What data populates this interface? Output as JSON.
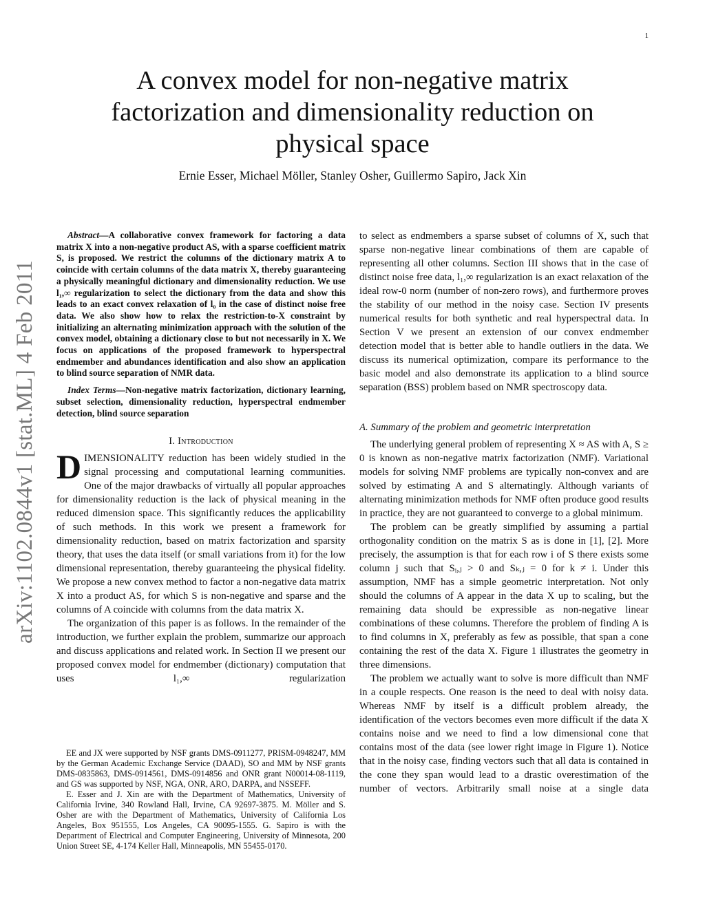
{
  "page_number": "1",
  "title": "A convex model for non-negative matrix factorization and dimensionality reduction on physical space",
  "authors": "Ernie Esser, Michael Möller, Stanley Osher, Guillermo Sapiro, Jack Xin",
  "arxiv_id": "arXiv:1102.0844v1  [stat.ML]  4 Feb 2011",
  "abstract": {
    "label": "Abstract",
    "text": "—A collaborative convex framework for factoring a data matrix X into a non-negative product AS, with a sparse coefficient matrix S, is proposed. We restrict the columns of the dictionary matrix A to coincide with certain columns of the data matrix X, thereby guaranteeing a physically meaningful dictionary and dimensionality reduction. We use l₁,∞ regularization to select the dictionary from the data and show this leads to an exact convex relaxation of l₀ in the case of distinct noise free data. We also show how to relax the restriction-to-X constraint by initializing an alternating minimization approach with the solution of the convex model, obtaining a dictionary close to but not necessarily in X. We focus on applications of the proposed framework to hyperspectral endmember and abundances identification and also show an application to blind source separation of NMR data."
  },
  "index_terms": {
    "label": "Index Terms",
    "text": "—Non-negative matrix factorization, dictionary learning, subset selection, dimensionality reduction, hyperspectral endmember detection, blind source separation"
  },
  "section1": {
    "heading": "I. Introduction",
    "dropcap": "D",
    "p1": "IMENSIONALITY reduction has been widely studied in the signal processing and computational learning communities. One of the major drawbacks of virtually all popular approaches for dimensionality reduction is the lack of physical meaning in the reduced dimension space. This significantly reduces the applicability of such methods. In this work we present a framework for dimensionality reduction, based on matrix factorization and sparsity theory, that uses the data itself (or small variations from it) for the low dimensional representation, thereby guaranteeing the physical fidelity. We propose a new convex method to factor a non-negative data matrix X into a product AS, for which S is non-negative and sparse and the columns of A coincide with columns from the data matrix X.",
    "p2": "The organization of this paper is as follows. In the remainder of the introduction, we further explain the problem, summarize our approach and discuss applications and related work. In Section II we present our proposed convex model for endmember (dictionary) computation that uses l₁,∞ regularization",
    "p2_cont": "to select as endmembers a sparse subset of columns of X, such that sparse non-negative linear combinations of them are capable of representing all other columns. Section III shows that in the case of distinct noise free data, l₁,∞ regularization is an exact relaxation of the ideal row-0 norm (number of non-zero rows), and furthermore proves the stability of our method in the noisy case. Section IV presents numerical results for both synthetic and real hyperspectral data. In Section V we present an extension of our convex endmember detection model that is better able to handle outliers in the data. We discuss its numerical optimization, compare its performance to the basic model and also demonstrate its application to a blind source separation (BSS) problem based on NMR spectroscopy data."
  },
  "subsectionA": {
    "heading": "A. Summary of the problem and geometric interpretation",
    "p1": "The underlying general problem of representing X ≈ AS with A, S ≥ 0 is known as non-negative matrix factorization (NMF). Variational models for solving NMF problems are typically non-convex and are solved by estimating A and S alternatingly. Although variants of alternating minimization methods for NMF often produce good results in practice, they are not guaranteed to converge to a global minimum.",
    "p2": "The problem can be greatly simplified by assuming a partial orthogonality condition on the matrix S as is done in [1], [2]. More precisely, the assumption is that for each row i of S there exists some column j such that Sᵢ,ⱼ > 0 and Sₖ,ⱼ = 0 for k ≠ i. Under this assumption, NMF has a simple geometric interpretation. Not only should the columns of A appear in the data X up to scaling, but the remaining data should be expressible as non-negative linear combinations of these columns. Therefore the problem of finding A is to find columns in X, preferably as few as possible, that span a cone containing the rest of the data X. Figure 1 illustrates the geometry in three dimensions.",
    "p3": "The problem we actually want to solve is more difficult than NMF in a couple respects. One reason is the need to deal with noisy data. Whereas NMF by itself is a difficult problem already, the identification of the vectors becomes even more difficult if the data X contains noise and we need to find a low dimensional cone that contains most of the data (see lower right image in Figure 1). Notice that in the noisy case, finding vectors such that all data is contained in the cone they span would lead to a drastic overestimation of the number of vectors. Arbitrarily small noise at a single data"
  },
  "footnotes": {
    "f1": "EE and JX were supported by NSF grants DMS-0911277, PRISM-0948247, MM by the German Academic Exchange Service (DAAD), SO and MM by NSF grants DMS-0835863, DMS-0914561, DMS-0914856 and ONR grant N00014-08-1119, and GS was supported by NSF, NGA, ONR, ARO, DARPA, and NSSEFF.",
    "f2": "E. Esser and J. Xin are with the Department of Mathematics, University of California Irvine, 340 Rowland Hall, Irvine, CA 92697-3875. M. Möller and S. Osher are with the Department of Mathematics, University of California Los Angeles, Box 951555, Los Angeles, CA 90095-1555. G. Sapiro is with the Department of Electrical and Computer Engineering, University of Minnesota, 200 Union Street SE, 4-174 Keller Hall, Minneapolis, MN 55455-0170."
  }
}
